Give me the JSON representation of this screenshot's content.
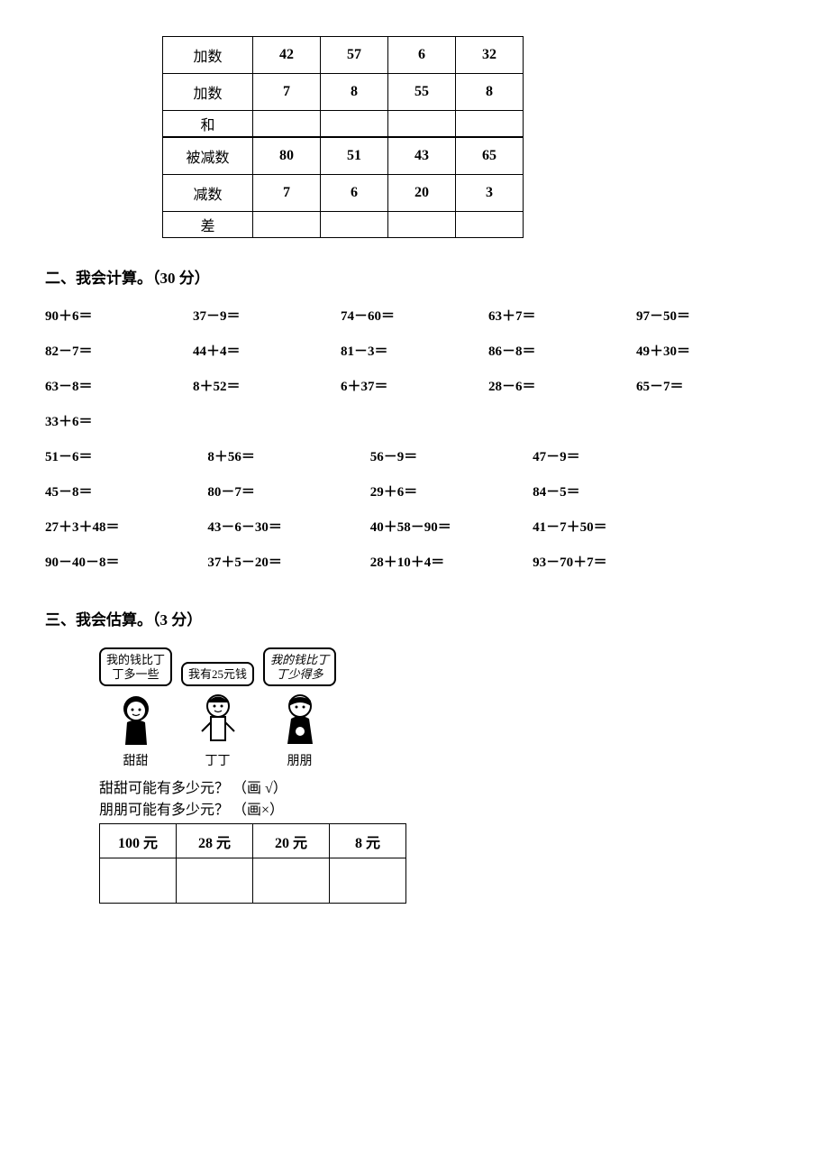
{
  "table1": {
    "rows": [
      {
        "label": "加数",
        "vals": [
          "42",
          "57",
          "6",
          "32"
        ],
        "short": false
      },
      {
        "label": "加数",
        "vals": [
          "7",
          "8",
          "55",
          "8"
        ],
        "short": false
      },
      {
        "label": "和",
        "vals": [
          "",
          "",
          "",
          ""
        ],
        "short": true
      }
    ]
  },
  "table2": {
    "rows": [
      {
        "label": "被减数",
        "vals": [
          "80",
          "51",
          "43",
          "65"
        ],
        "short": false
      },
      {
        "label": "减数",
        "vals": [
          "7",
          "6",
          "20",
          "3"
        ],
        "short": false
      },
      {
        "label": "差",
        "vals": [
          "",
          "",
          "",
          ""
        ],
        "short": true
      }
    ]
  },
  "section2": {
    "title": "二、我会计算。（30 分）",
    "rows": [
      {
        "cls": "c5",
        "items": [
          "90＋6＝",
          "37－9＝",
          "74－60＝",
          "63＋7＝",
          "97－50＝"
        ]
      },
      {
        "cls": "c5",
        "items": [
          "82－7＝",
          "44＋4＝",
          "81－3＝",
          "86－8＝",
          "49＋30＝"
        ]
      },
      {
        "cls": "c5",
        "items": [
          "63－8＝",
          "8＋52＝",
          "6＋37＝",
          "28－6＝",
          "65－7＝"
        ]
      },
      {
        "cls": "c1",
        "items": [
          "33＋6＝"
        ]
      },
      {
        "cls": "c4",
        "items": [
          "51－6＝",
          "8＋56＝",
          "56－9＝",
          "47－9＝"
        ]
      },
      {
        "cls": "c4",
        "items": [
          "45－8＝",
          "80－7＝",
          "29＋6＝",
          "84－5＝"
        ]
      },
      {
        "cls": "c4",
        "items": [
          "27＋3＋48＝",
          "43－6－30＝",
          "40＋58－90＝",
          "41－7＋50＝"
        ]
      },
      {
        "cls": "c4",
        "items": [
          "90－40－8＝",
          "37＋5－20＝",
          "28＋10＋4＝",
          "93－70＋7＝"
        ]
      }
    ]
  },
  "section3": {
    "title": "三、我会估算。（3 分）",
    "bubbles": {
      "tian": "我的钱比丁\n丁多一些",
      "ding": "我有25元钱",
      "peng": "我的钱比丁\n丁少得多"
    },
    "names": {
      "tian": "甜甜",
      "ding": "丁丁",
      "peng": "朋朋"
    },
    "q1": "甜甜可能有多少元？ （画 √）",
    "q2": "朋朋可能有多少元？ （画×）",
    "options": [
      "100 元",
      "28 元",
      "20 元",
      "8 元"
    ]
  }
}
